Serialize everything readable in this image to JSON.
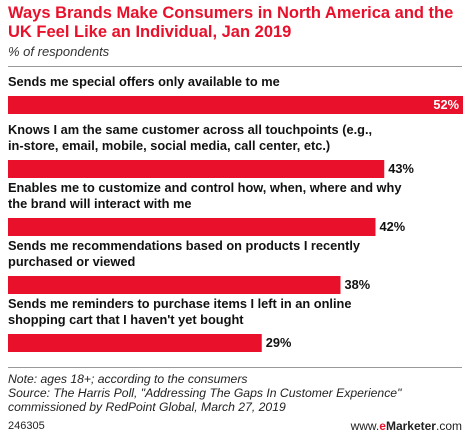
{
  "title": "Ways Brands Make Consumers in North America and the UK Feel Like an Individual, Jan 2019",
  "subtitle": "% of respondents",
  "chart_data": {
    "type": "bar",
    "orientation": "horizontal",
    "categories": [
      [
        "Sends me special offers only available to me"
      ],
      [
        "Knows I am the same customer across all touchpoints (e.g.,",
        "in-store, email, mobile, social media, call center, etc.)"
      ],
      [
        "Enables me to customize and control how, when, where and why",
        "the brand will interact with me"
      ],
      [
        "Sends me recommendations based on products I recently",
        "purchased or viewed"
      ],
      [
        "Sends me reminders to purchase items I left in an online",
        "shopping cart that I haven't yet bought"
      ]
    ],
    "values": [
      52,
      43,
      42,
      38,
      29
    ],
    "value_labels": [
      "52%",
      "43%",
      "42%",
      "38%",
      "29%"
    ],
    "xlim": [
      0,
      52
    ],
    "bar_color": "#e8102a",
    "grid": false
  },
  "note": "Note: ages 18+; according to the consumers",
  "source": "Source: The Harris Poll, \"Addressing The Gaps In Customer Experience\" commissioned by RedPoint Global, March 27, 2019",
  "footer": {
    "id": "246305",
    "brand_prefix": "www.",
    "brand_e": "e",
    "brand_name": "Marketer",
    "brand_suffix": ".com"
  }
}
